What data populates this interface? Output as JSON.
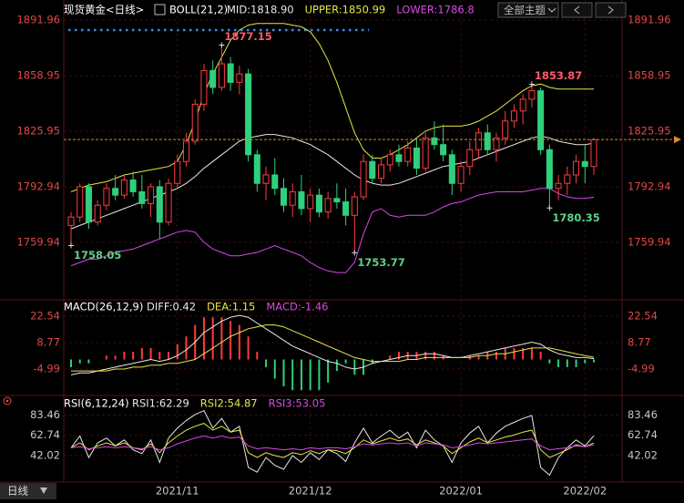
{
  "toolbar": {
    "theme_button": "全部主题",
    "period_tab": "日线"
  },
  "chart_data": [
    {
      "type": "candlestick",
      "title": "现货黄金<日线>",
      "indicator": "BOLL(21,2)",
      "up_color": "#ff3c3c",
      "down_color": "#2fd07c",
      "label_high_color": "#ff5a6a",
      "label_low_color": "#5fd18a",
      "ylim": [
        1728,
        1898.5
      ],
      "yticks": [
        1891.96,
        1858.95,
        1825.95,
        1792.94,
        1759.94
      ],
      "grid": true,
      "categories": [
        null,
        null,
        null,
        null,
        null,
        null,
        null,
        null,
        null,
        null,
        null,
        null,
        "2021/11",
        null,
        null,
        null,
        null,
        null,
        null,
        null,
        null,
        null,
        null,
        null,
        null,
        null,
        null,
        "2021/12",
        null,
        null,
        null,
        null,
        null,
        null,
        null,
        null,
        null,
        null,
        null,
        null,
        null,
        null,
        null,
        null,
        "2022/01",
        null,
        null,
        null,
        null,
        null,
        null,
        null,
        null,
        null,
        null,
        null,
        null,
        null,
        "2022/02",
        null
      ],
      "open": [
        1770,
        1775,
        1793,
        1772,
        1782,
        1792,
        1788,
        1797,
        1790,
        1783,
        1793,
        1772,
        1795,
        1808,
        1820,
        1842,
        1862,
        1852,
        1866,
        1855,
        1860,
        1812,
        1795,
        1800,
        1792,
        1782,
        1790,
        1780,
        1788,
        1778,
        1786,
        1784,
        1776,
        1787,
        1808,
        1798,
        1806,
        1812,
        1808,
        1816,
        1804,
        1822,
        1818,
        1812,
        1795,
        1805,
        1815,
        1825,
        1815,
        1822,
        1832,
        1838,
        1845,
        1850,
        1815,
        1792,
        1795,
        1800,
        1808,
        1805
      ],
      "high": [
        1778,
        1795,
        1795,
        1785,
        1795,
        1800,
        1800,
        1802,
        1800,
        1795,
        1797,
        1798,
        1812,
        1825,
        1845,
        1866,
        1868,
        1877.15,
        1870,
        1865,
        1863,
        1815,
        1805,
        1810,
        1798,
        1795,
        1800,
        1792,
        1792,
        1790,
        1795,
        1792,
        1790,
        1812,
        1812,
        1810,
        1815,
        1818,
        1820,
        1822,
        1825,
        1832,
        1830,
        1815,
        1808,
        1820,
        1828,
        1830,
        1825,
        1838,
        1842,
        1848,
        1853.87,
        1852,
        1818,
        1800,
        1805,
        1812,
        1818,
        1822
      ],
      "low": [
        1758.05,
        1772,
        1768,
        1770,
        1779,
        1785,
        1786,
        1787,
        1780,
        1775,
        1762,
        1770,
        1792,
        1805,
        1818,
        1838,
        1848,
        1850,
        1850,
        1848,
        1808,
        1790,
        1785,
        1788,
        1778,
        1775,
        1776,
        1772,
        1775,
        1774,
        1780,
        1770,
        1753.77,
        1785,
        1795,
        1795,
        1802,
        1805,
        1805,
        1800,
        1802,
        1815,
        1808,
        1788,
        1790,
        1800,
        1810,
        1812,
        1808,
        1818,
        1828,
        1830,
        1840,
        1812,
        1780.35,
        1785,
        1788,
        1795,
        1795,
        1800
      ],
      "close": [
        1775,
        1793,
        1772,
        1782,
        1792,
        1788,
        1797,
        1790,
        1783,
        1793,
        1772,
        1795,
        1808,
        1820,
        1842,
        1862,
        1852,
        1866,
        1855,
        1860,
        1812,
        1795,
        1800,
        1792,
        1782,
        1790,
        1780,
        1788,
        1778,
        1786,
        1784,
        1776,
        1787,
        1808,
        1798,
        1806,
        1812,
        1808,
        1816,
        1804,
        1822,
        1818,
        1812,
        1795,
        1805,
        1815,
        1825,
        1815,
        1822,
        1832,
        1838,
        1845,
        1850,
        1815,
        1792,
        1795,
        1800,
        1808,
        1805,
        1821
      ],
      "series": [
        {
          "name": "MID:1818.90",
          "color": "#e8e8e8",
          "values": [
            1768,
            1770,
            1772,
            1774,
            1776,
            1778,
            1780,
            1782,
            1784,
            1786,
            1788,
            1790,
            1792,
            1795,
            1799,
            1804,
            1808,
            1812,
            1816,
            1820,
            1822,
            1823,
            1824,
            1824,
            1823,
            1822,
            1820,
            1818,
            1815,
            1812,
            1808,
            1804,
            1800,
            1797,
            1795,
            1794,
            1794,
            1795,
            1797,
            1799,
            1801,
            1803,
            1805,
            1806,
            1807,
            1808,
            1810,
            1812,
            1814,
            1816,
            1818,
            1820,
            1822,
            1823,
            1822,
            1820,
            1819,
            1818,
            1818,
            1818.9
          ]
        },
        {
          "name": "UPPER:1850.99",
          "color": "#e6e64a",
          "values": [
            1790,
            1792,
            1794,
            1795,
            1796,
            1798,
            1800,
            1801,
            1802,
            1803,
            1804,
            1805,
            1808,
            1818,
            1832,
            1848,
            1860,
            1870,
            1880,
            1886,
            1889,
            1890,
            1890,
            1890,
            1890,
            1889,
            1888,
            1885,
            1878,
            1868,
            1855,
            1840,
            1825,
            1815,
            1810,
            1810,
            1812,
            1815,
            1818,
            1822,
            1826,
            1828,
            1829,
            1829,
            1829,
            1830,
            1832,
            1835,
            1838,
            1842,
            1846,
            1850,
            1853,
            1854,
            1852,
            1851,
            1851,
            1851,
            1851,
            1850.99
          ]
        },
        {
          "name": "LOWER:1786.8",
          "color": "#d84ae6",
          "values": [
            1746,
            1748,
            1750,
            1750,
            1752,
            1754,
            1755,
            1756,
            1758,
            1760,
            1762,
            1764,
            1766,
            1767,
            1766,
            1760,
            1756,
            1754,
            1752,
            1752,
            1753,
            1754,
            1756,
            1758,
            1756,
            1754,
            1752,
            1748,
            1745,
            1743,
            1742,
            1742,
            1748,
            1765,
            1778,
            1780,
            1776,
            1775,
            1776,
            1776,
            1776,
            1778,
            1781,
            1783,
            1784,
            1786,
            1788,
            1789,
            1790,
            1790,
            1790,
            1790,
            1791,
            1792,
            1792,
            1789,
            1787,
            1786,
            1786,
            1786.8
          ]
        }
      ]
    },
    {
      "type": "macd",
      "title": "MACD(26,12,9)",
      "up_color": "#ff3c3c",
      "down_color": "#2fd07c",
      "ylim": [
        -17.8,
        29.2
      ],
      "yticks": [
        22.54,
        8.77,
        -4.99
      ],
      "series": [
        {
          "name": "DIFF:0.42",
          "color": "#e8e8e8",
          "values": [
            -8,
            -7,
            -7,
            -6,
            -5,
            -4,
            -3,
            -2,
            -1,
            0,
            -1,
            0,
            2,
            5,
            9,
            14,
            17,
            20,
            22,
            23,
            22,
            19,
            16,
            13,
            10,
            7,
            5,
            3,
            1,
            -1,
            -2,
            -4,
            -5,
            -4,
            -2,
            -1,
            0,
            1,
            2,
            2,
            3,
            3,
            2,
            1,
            1,
            2,
            3,
            4,
            5,
            6,
            7,
            8,
            9,
            8,
            5,
            3,
            2,
            1,
            1,
            0.42
          ]
        },
        {
          "name": "DEA:1.15",
          "color": "#e6e64a",
          "values": [
            -6,
            -6,
            -6,
            -6,
            -6,
            -5,
            -5,
            -4,
            -4,
            -3,
            -3,
            -2,
            -2,
            -1,
            0,
            3,
            6,
            9,
            12,
            14,
            16,
            17,
            18,
            18,
            17,
            15,
            13,
            11,
            9,
            7,
            5,
            3,
            1,
            0,
            -1,
            -1,
            -1,
            -1,
            0,
            0,
            1,
            1,
            1,
            1,
            1,
            1,
            2,
            2,
            3,
            3,
            4,
            5,
            6,
            6,
            6,
            5,
            4,
            3,
            2,
            1.15
          ]
        }
      ],
      "histogram": {
        "name": "MACD:-1.46",
        "color": "#d84ae6",
        "values": [
          -4,
          -2,
          -2,
          0,
          2,
          2,
          4,
          4,
          6,
          6,
          4,
          4,
          8,
          12,
          18,
          22,
          22,
          22,
          20,
          18,
          12,
          4,
          -4,
          -10,
          -14,
          -16,
          -16,
          -16,
          -16,
          -12,
          -6,
          -2,
          -8,
          -8,
          -2,
          0,
          2,
          4,
          4,
          4,
          4,
          4,
          2,
          0,
          0,
          2,
          2,
          4,
          4,
          6,
          6,
          6,
          6,
          4,
          -2,
          -4,
          -4,
          -4,
          -2,
          -1.46
        ]
      }
    },
    {
      "type": "line",
      "title": "RSI(6,12,24)",
      "ylim": [
        15.9,
        97.9
      ],
      "yticks": [
        83.46,
        62.74,
        42.02
      ],
      "series": [
        {
          "name": "RSI1:62.29",
          "color": "#e8e8e8",
          "values": [
            50,
            62,
            40,
            55,
            60,
            52,
            58,
            48,
            44,
            58,
            35,
            60,
            70,
            78,
            84,
            88,
            70,
            80,
            66,
            72,
            30,
            25,
            40,
            32,
            28,
            42,
            35,
            45,
            38,
            48,
            44,
            36,
            55,
            70,
            55,
            62,
            68,
            60,
            66,
            50,
            68,
            58,
            52,
            35,
            55,
            65,
            72,
            55,
            65,
            72,
            76,
            80,
            83,
            30,
            22,
            40,
            50,
            58,
            52,
            62.29
          ]
        },
        {
          "name": "RSI2:54.87",
          "color": "#e6e64a",
          "values": [
            50,
            55,
            48,
            52,
            55,
            52,
            55,
            50,
            48,
            54,
            45,
            55,
            62,
            68,
            72,
            75,
            68,
            72,
            66,
            68,
            45,
            40,
            45,
            42,
            40,
            45,
            43,
            47,
            44,
            48,
            47,
            44,
            50,
            58,
            54,
            57,
            60,
            57,
            59,
            53,
            58,
            55,
            52,
            44,
            50,
            56,
            60,
            55,
            58,
            61,
            63,
            66,
            68,
            48,
            40,
            44,
            48,
            53,
            51,
            54.87
          ]
        },
        {
          "name": "RSI3:53.05",
          "color": "#d84ae6",
          "values": [
            50,
            51,
            49,
            50,
            51,
            50,
            51,
            50,
            49,
            51,
            48,
            50,
            54,
            57,
            60,
            62,
            60,
            62,
            60,
            61,
            52,
            49,
            50,
            49,
            48,
            49,
            48,
            50,
            49,
            50,
            50,
            49,
            51,
            54,
            53,
            54,
            55,
            54,
            55,
            52,
            55,
            54,
            53,
            50,
            51,
            53,
            55,
            54,
            55,
            56,
            57,
            58,
            59,
            52,
            48,
            49,
            50,
            52,
            51,
            53.05
          ]
        }
      ]
    }
  ]
}
